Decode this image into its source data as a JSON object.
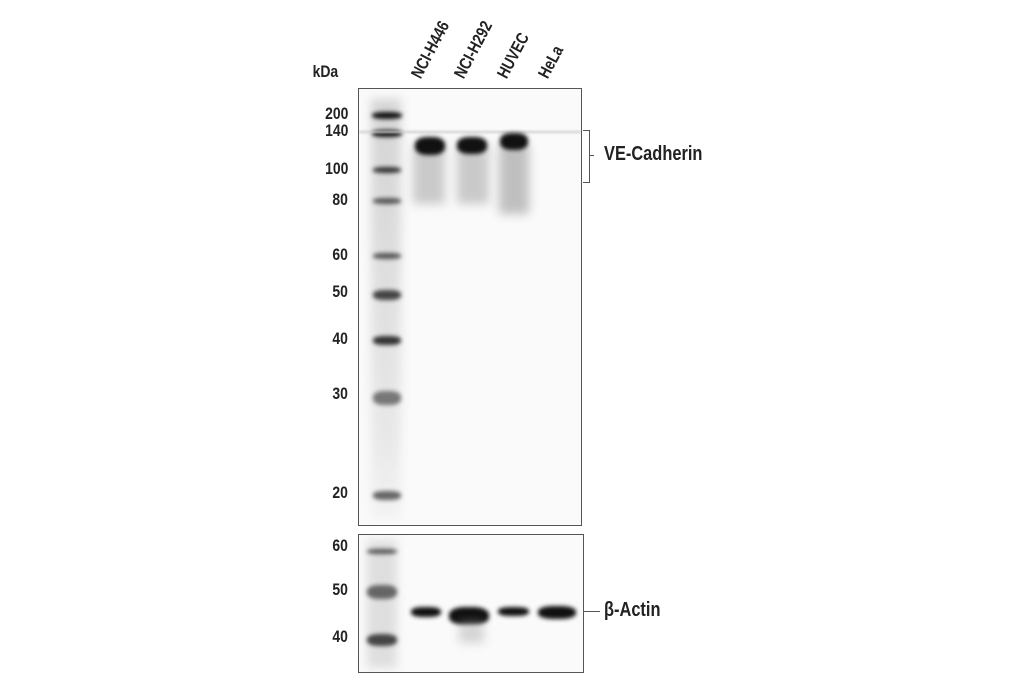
{
  "unit_label": "kDa",
  "lanes": [
    "NCI-H446",
    "NCI-H292",
    "HUVEC",
    "HeLa"
  ],
  "top_panel": {
    "markers": [
      "200",
      "140",
      "100",
      "80",
      "60",
      "50",
      "40",
      "30",
      "20"
    ],
    "target": "VE-Cadherin"
  },
  "bottom_panel": {
    "markers": [
      "60",
      "50",
      "40"
    ],
    "target": "β-Actin"
  }
}
